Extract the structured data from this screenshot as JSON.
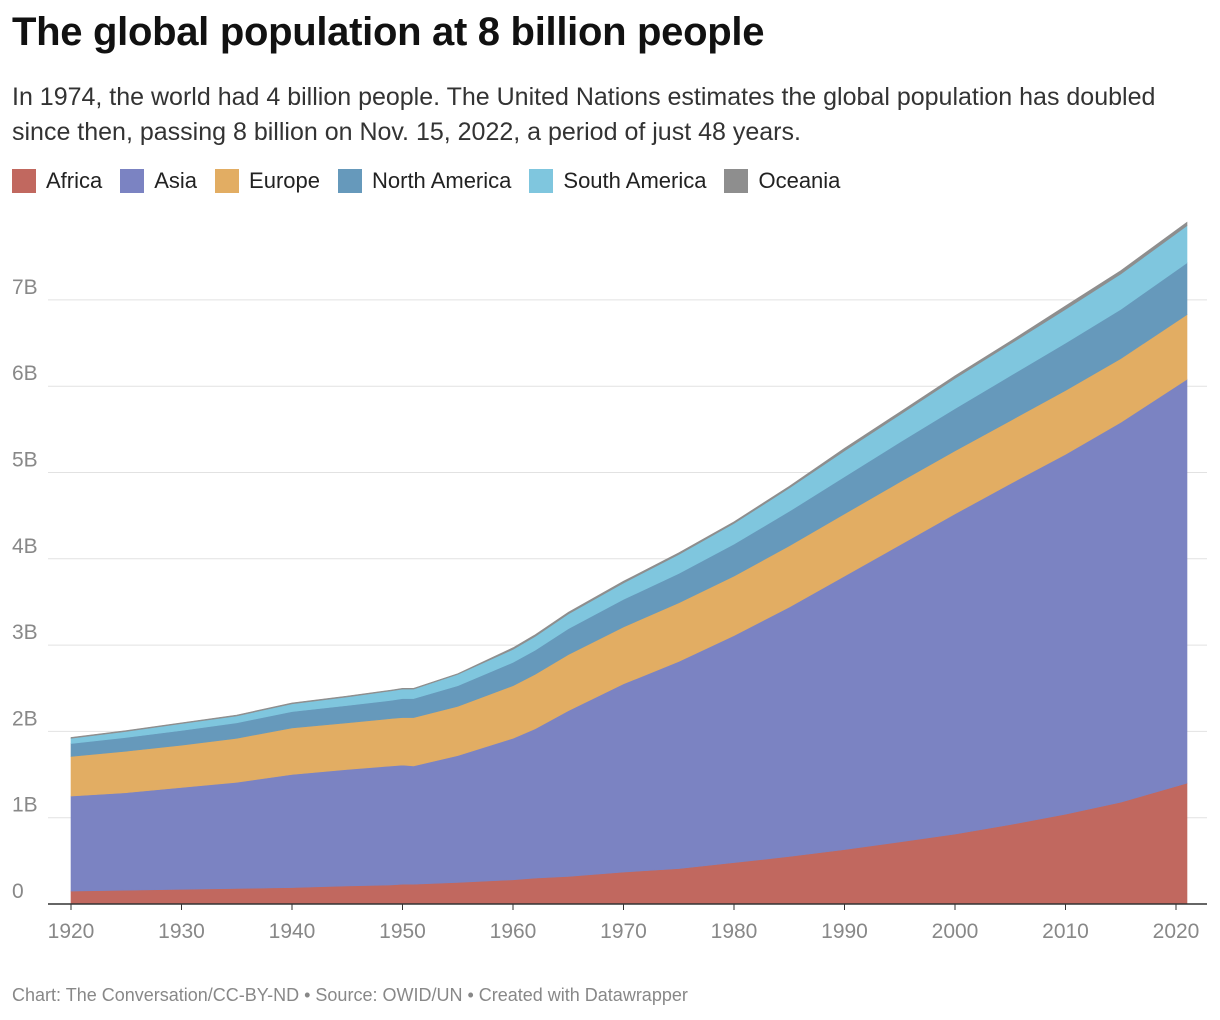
{
  "chart_data": {
    "type": "area",
    "stacked": true,
    "title": "The global population at 8 billion people",
    "subtitle": "In 1974, the world had 4 billion people. The United Nations estimates the global population has doubled since then, passing 8 billion on Nov. 15, 2022, a period of just 48 years.",
    "x": [
      1920,
      1925,
      1930,
      1935,
      1940,
      1945,
      1949,
      1950,
      1951,
      1955,
      1960,
      1962,
      1965,
      1970,
      1975,
      1980,
      1985,
      1990,
      1995,
      2000,
      2005,
      2010,
      2015,
      2021
    ],
    "series": [
      {
        "name": "Africa",
        "color": "#c1685f",
        "values": [
          0.15,
          0.16,
          0.17,
          0.18,
          0.19,
          0.21,
          0.22,
          0.23,
          0.23,
          0.25,
          0.28,
          0.3,
          0.32,
          0.37,
          0.41,
          0.48,
          0.55,
          0.63,
          0.72,
          0.81,
          0.92,
          1.04,
          1.18,
          1.4
        ]
      },
      {
        "name": "Asia",
        "color": "#7b83c2",
        "values": [
          1.1,
          1.13,
          1.18,
          1.23,
          1.31,
          1.35,
          1.38,
          1.38,
          1.37,
          1.47,
          1.64,
          1.73,
          1.92,
          2.18,
          2.4,
          2.63,
          2.89,
          3.17,
          3.44,
          3.71,
          3.95,
          4.17,
          4.4,
          4.68
        ]
      },
      {
        "name": "Europe",
        "color": "#e2ad63",
        "values": [
          0.46,
          0.48,
          0.49,
          0.51,
          0.54,
          0.54,
          0.55,
          0.55,
          0.56,
          0.57,
          0.61,
          0.63,
          0.65,
          0.66,
          0.68,
          0.69,
          0.71,
          0.72,
          0.73,
          0.73,
          0.73,
          0.74,
          0.74,
          0.75
        ]
      },
      {
        "name": "North America",
        "color": "#6699bb",
        "values": [
          0.15,
          0.16,
          0.17,
          0.18,
          0.19,
          0.2,
          0.21,
          0.22,
          0.22,
          0.24,
          0.27,
          0.28,
          0.3,
          0.32,
          0.34,
          0.37,
          0.4,
          0.43,
          0.46,
          0.49,
          0.52,
          0.55,
          0.57,
          0.6
        ]
      },
      {
        "name": "South America",
        "color": "#7fc6de",
        "values": [
          0.06,
          0.07,
          0.08,
          0.08,
          0.09,
          0.1,
          0.11,
          0.11,
          0.11,
          0.13,
          0.15,
          0.16,
          0.17,
          0.19,
          0.22,
          0.24,
          0.27,
          0.3,
          0.32,
          0.35,
          0.37,
          0.39,
          0.41,
          0.43
        ]
      },
      {
        "name": "Oceania",
        "color": "#8e8e8e",
        "values": [
          0.01,
          0.01,
          0.01,
          0.01,
          0.01,
          0.01,
          0.01,
          0.01,
          0.01,
          0.01,
          0.02,
          0.02,
          0.02,
          0.02,
          0.02,
          0.02,
          0.02,
          0.03,
          0.03,
          0.03,
          0.03,
          0.04,
          0.04,
          0.04
        ]
      }
    ],
    "xlim": [
      1918,
      2022
    ],
    "ylim": [
      0,
      7.8
    ],
    "y_ticks": [
      0,
      1,
      2,
      3,
      4,
      5,
      6,
      7
    ],
    "y_tick_labels": [
      "0",
      "1B",
      "2B",
      "3B",
      "4B",
      "5B",
      "6B",
      "7B"
    ],
    "x_ticks": [
      1920,
      1930,
      1940,
      1950,
      1960,
      1970,
      1980,
      1990,
      2000,
      2010,
      2020
    ],
    "x_tick_labels": [
      "1920",
      "1930",
      "1940",
      "1950",
      "1960",
      "1970",
      "1980",
      "1990",
      "2000",
      "2010",
      "2020"
    ],
    "grid": true,
    "legend_position": "top-left"
  },
  "footer": "Chart: The Conversation/CC-BY-ND • Source: OWID/UN • Created with Datawrapper"
}
